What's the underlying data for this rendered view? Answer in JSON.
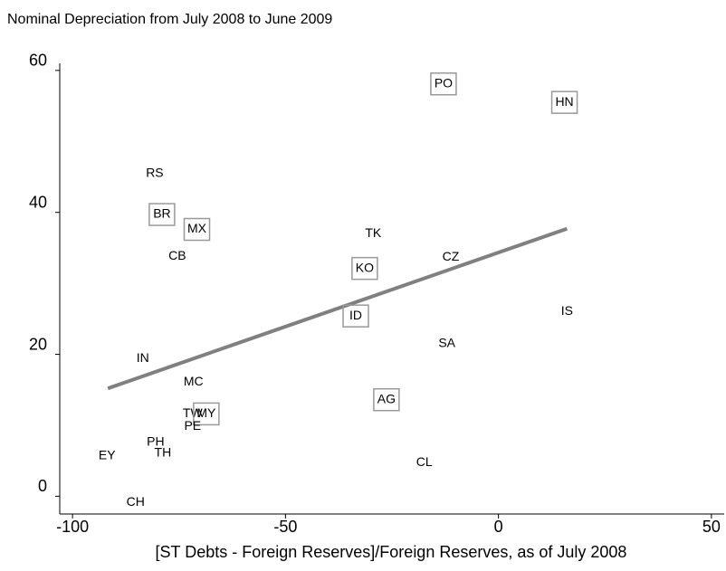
{
  "chart_data": {
    "type": "scatter",
    "title": "Nominal Depreciation from July 2008 to June 2009",
    "x_label": "[ST Debts - Foreign Reserves]/Foreign Reserves, as of July 2008",
    "xlim": [
      -103,
      53
    ],
    "ylim": [
      -2.5,
      61
    ],
    "xticks": [
      -100,
      -50,
      0,
      50
    ],
    "yticks": [
      0,
      20,
      40,
      60
    ],
    "box_color": "#999999",
    "points": [
      {
        "label": "RS",
        "x": -80.7,
        "y": 45.5,
        "boxed": false
      },
      {
        "label": "BR",
        "x": -79.0,
        "y": 39.7,
        "boxed": true
      },
      {
        "label": "MX",
        "x": -70.8,
        "y": 37.6,
        "boxed": true
      },
      {
        "label": "CB",
        "x": -75.4,
        "y": 33.8,
        "boxed": false
      },
      {
        "label": "TK",
        "x": -29.4,
        "y": 37.0,
        "boxed": false
      },
      {
        "label": "CZ",
        "x": -11.2,
        "y": 33.7,
        "boxed": false
      },
      {
        "label": "KO",
        "x": -31.4,
        "y": 32.1,
        "boxed": true
      },
      {
        "label": "ID",
        "x": -33.5,
        "y": 25.4,
        "boxed": true
      },
      {
        "label": "IS",
        "x": 16.1,
        "y": 26.0,
        "boxed": false
      },
      {
        "label": "SA",
        "x": -12.1,
        "y": 21.5,
        "boxed": false
      },
      {
        "label": "IN",
        "x": -83.5,
        "y": 19.4,
        "boxed": false
      },
      {
        "label": "MC",
        "x": -71.6,
        "y": 16.1,
        "boxed": false
      },
      {
        "label": "AG",
        "x": -26.3,
        "y": 13.6,
        "boxed": true
      },
      {
        "label": "TW",
        "x": -71.8,
        "y": 11.6,
        "boxed": false
      },
      {
        "label": "MY",
        "x": -68.6,
        "y": 11.6,
        "boxed": true
      },
      {
        "label": "PE",
        "x": -71.8,
        "y": 9.8,
        "boxed": false
      },
      {
        "label": "PH",
        "x": -80.5,
        "y": 7.6,
        "boxed": false
      },
      {
        "label": "TH",
        "x": -78.8,
        "y": 6.1,
        "boxed": false
      },
      {
        "label": "EY",
        "x": -91.9,
        "y": 5.7,
        "boxed": false
      },
      {
        "label": "CL",
        "x": -17.4,
        "y": 4.7,
        "boxed": false
      },
      {
        "label": "CH",
        "x": -85.2,
        "y": -0.9,
        "boxed": false
      },
      {
        "label": "PO",
        "x": -12.9,
        "y": 58.1,
        "boxed": true
      },
      {
        "label": "HN",
        "x": 15.5,
        "y": 55.5,
        "boxed": true
      }
    ],
    "fit_line": {
      "x": [
        -91.7,
        16.1
      ],
      "y": [
        15.2,
        37.7
      ],
      "color": "#808080"
    }
  }
}
